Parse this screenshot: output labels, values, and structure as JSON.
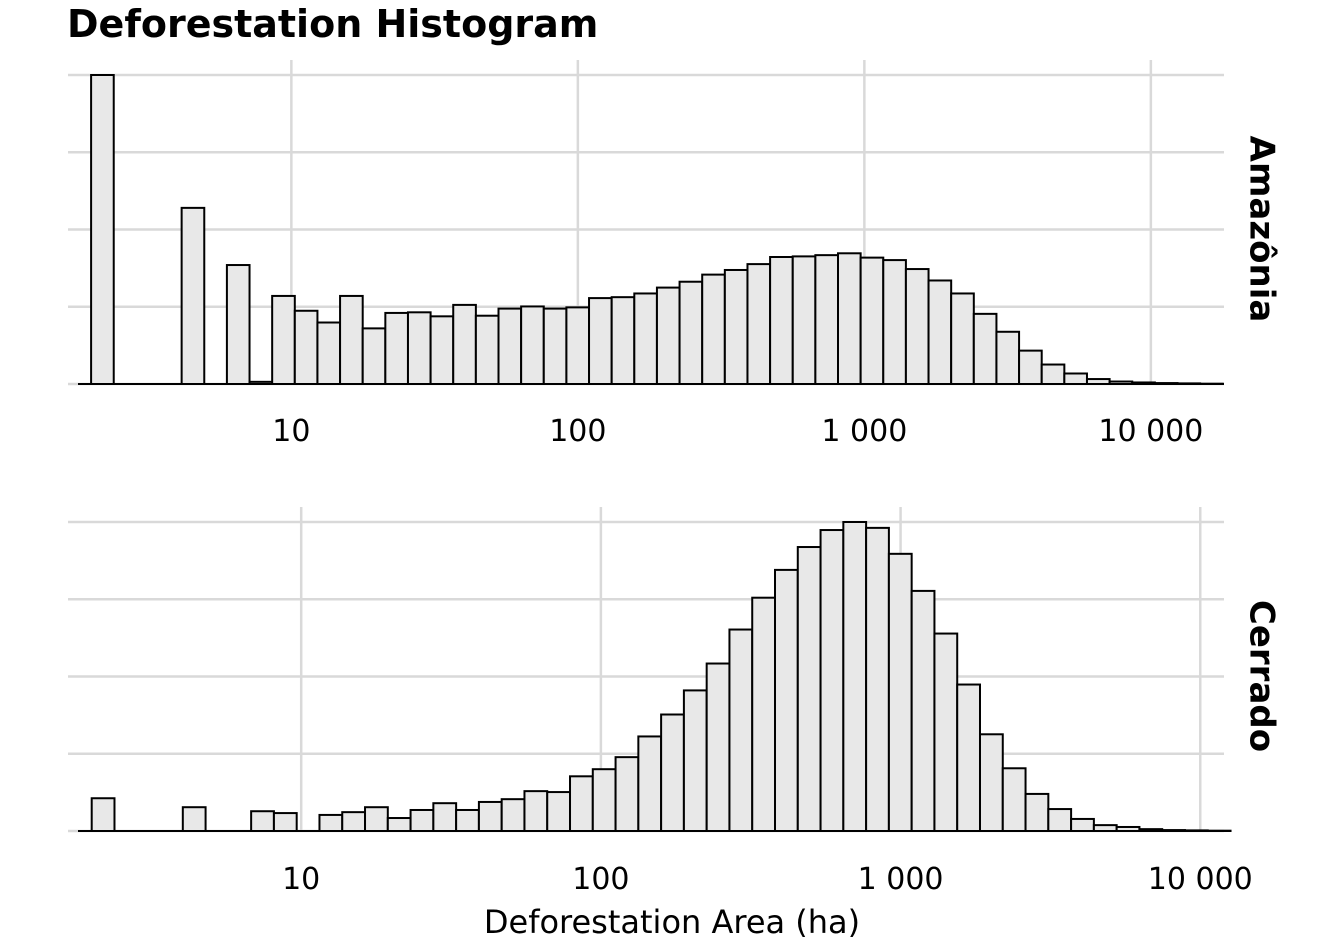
{
  "title": "Deforestation Histogram",
  "chart_data": {
    "type": "bar",
    "xlabel": "Deforestation Area (ha)",
    "x_scale": "log10",
    "x_ticks": [
      10,
      100,
      1000,
      10000
    ],
    "x_tick_labels": [
      "10",
      "100",
      "1 000",
      "10 000"
    ],
    "y_tick_labels_shown": false,
    "grid": true,
    "bar_fill": "#e8e8e8",
    "bar_stroke": "#000000",
    "panels": [
      {
        "name": "Amazônia",
        "x_range": [
          1.8,
          18000
        ],
        "bin_log10_range": [
          0.301,
          4.251
        ],
        "values": [
          100,
          0,
          0,
          0,
          57,
          0,
          38.5,
          0.7,
          28.5,
          23.7,
          19.9,
          28.5,
          18,
          23,
          23.2,
          21.9,
          25.6,
          22.1,
          24.4,
          25.1,
          24.4,
          24.8,
          27.8,
          28.1,
          29.3,
          31.2,
          33.1,
          35.4,
          36.9,
          38.8,
          41.1,
          41.3,
          41.7,
          42.3,
          40.9,
          40.1,
          37.2,
          33.5,
          29.3,
          22.7,
          16.9,
          10.8,
          6.3,
          3.4,
          1.6,
          0.8,
          0.5,
          0.3,
          0.2,
          0.1
        ]
      },
      {
        "name": "Cerrado",
        "x_range": [
          1.8,
          12000
        ],
        "bin_log10_range": [
          0.301,
          4.101
        ],
        "values": [
          10.6,
          0,
          0,
          0,
          7.7,
          0,
          0,
          6.4,
          5.8,
          0,
          5.2,
          6.1,
          7.7,
          4.2,
          6.8,
          9,
          6.8,
          9.4,
          10.3,
          12.9,
          12.6,
          17.7,
          20,
          23.9,
          30.6,
          37.7,
          45.5,
          54.2,
          65.2,
          75.5,
          84.5,
          91.9,
          97.4,
          100,
          98.1,
          89.7,
          77.7,
          63.9,
          47.4,
          31.3,
          20.3,
          12,
          7.1,
          3.9,
          1.9,
          1.3,
          0.6,
          0.3,
          0.2,
          0.1
        ]
      }
    ]
  }
}
